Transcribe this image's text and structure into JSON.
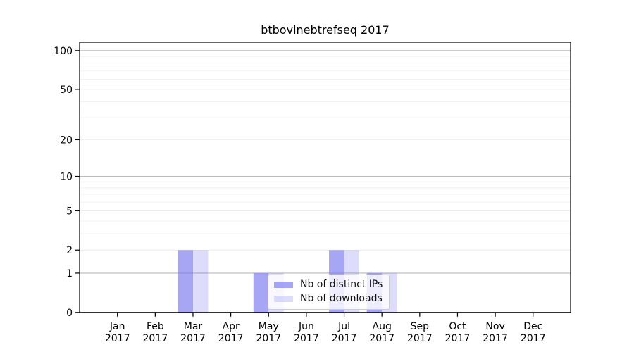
{
  "chart_data": {
    "type": "bar",
    "title": "btbovinebtrefseq 2017",
    "xlabel": "",
    "ylabel": "",
    "yscale": "log1p",
    "ylim": [
      0,
      113
    ],
    "grid": "on",
    "legend_position": "inside-bottom-center",
    "categories": [
      {
        "month": "Jan",
        "year": "2017"
      },
      {
        "month": "Feb",
        "year": "2017"
      },
      {
        "month": "Mar",
        "year": "2017"
      },
      {
        "month": "Apr",
        "year": "2017"
      },
      {
        "month": "May",
        "year": "2017"
      },
      {
        "month": "Jun",
        "year": "2017"
      },
      {
        "month": "Jul",
        "year": "2017"
      },
      {
        "month": "Aug",
        "year": "2017"
      },
      {
        "month": "Sep",
        "year": "2017"
      },
      {
        "month": "Oct",
        "year": "2017"
      },
      {
        "month": "Nov",
        "year": "2017"
      },
      {
        "month": "Dec",
        "year": "2017"
      }
    ],
    "series": [
      {
        "name": "Nb of distinct IPs",
        "color": "rgba(119,119,238,0.65)",
        "values": [
          0,
          0,
          2,
          0,
          1,
          0,
          2,
          1,
          0,
          0,
          0,
          0
        ]
      },
      {
        "name": "Nb of downloads",
        "color": "rgba(119,119,238,0.25)",
        "values": [
          0,
          0,
          2,
          0,
          1,
          0,
          2,
          1,
          0,
          0,
          0,
          0
        ]
      }
    ],
    "yticks": [
      0,
      1,
      2,
      5,
      10,
      20,
      50,
      100
    ],
    "yticks_emphasized": [
      1,
      10,
      100
    ],
    "yticks_minor": [
      3,
      4,
      6,
      7,
      8,
      9,
      30,
      40,
      60,
      70,
      80,
      90
    ]
  }
}
